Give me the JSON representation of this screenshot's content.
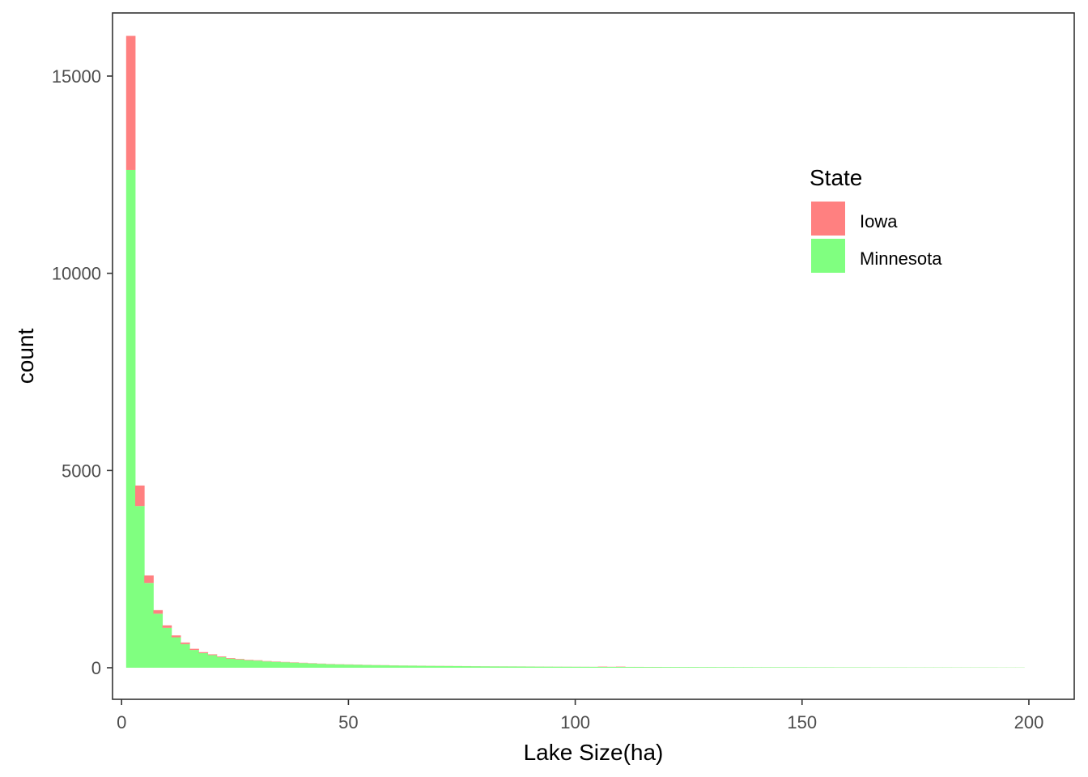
{
  "chart_data": {
    "type": "bar",
    "subtype": "stacked-histogram",
    "xlabel": "Lake Size(ha)",
    "ylabel": "count",
    "xlim": [
      -2,
      210
    ],
    "ylim": [
      -800,
      16600
    ],
    "x_ticks": [
      0,
      50,
      100,
      150,
      200
    ],
    "y_ticks": [
      0,
      5000,
      10000,
      15000
    ],
    "x_tick_labels": [
      "0",
      "50",
      "100",
      "150",
      "200"
    ],
    "y_tick_labels": [
      "0",
      "5000",
      "10000",
      "15000"
    ],
    "grid": false,
    "legend": {
      "title": "State",
      "position": "top-right"
    },
    "bins": {
      "start": 1,
      "width": 2,
      "end": 199
    },
    "series": [
      {
        "name": "Minnesota",
        "color": "#80ff80",
        "values": [
          12620,
          4100,
          2150,
          1370,
          1010,
          770,
          600,
          450,
          370,
          320,
          270,
          230,
          210,
          190,
          180,
          160,
          150,
          140,
          130,
          120,
          110,
          100,
          90,
          85,
          80,
          75,
          70,
          66,
          62,
          58,
          55,
          52,
          50,
          48,
          46,
          44,
          42,
          40,
          38,
          36,
          34,
          33,
          32,
          31,
          30,
          29,
          28,
          27,
          26,
          25,
          24,
          23,
          22,
          21,
          21,
          20,
          20,
          19,
          19,
          18,
          18,
          17,
          17,
          16,
          16,
          15,
          15,
          14,
          14,
          13,
          13,
          13,
          12,
          12,
          12,
          11,
          11,
          11,
          10,
          10,
          10,
          10,
          9,
          9,
          9,
          9,
          8,
          8,
          8,
          8,
          8,
          7,
          7,
          7,
          7,
          7,
          6,
          6,
          6
        ]
      },
      {
        "name": "Iowa",
        "color": "#ff8080",
        "values": [
          3400,
          520,
          190,
          90,
          65,
          50,
          40,
          30,
          25,
          20,
          18,
          16,
          14,
          12,
          11,
          10,
          9,
          8,
          8,
          7,
          7,
          6,
          6,
          5,
          5,
          5,
          4,
          4,
          4,
          4,
          3,
          3,
          3,
          3,
          3,
          3,
          2,
          2,
          2,
          2,
          2,
          2,
          2,
          2,
          2,
          2,
          2,
          2,
          2,
          2,
          2,
          2,
          8,
          4,
          8,
          2,
          2,
          2,
          2,
          1,
          1,
          1,
          1,
          1,
          1,
          1,
          1,
          1,
          1,
          1,
          1,
          1,
          1,
          1,
          1,
          1,
          1,
          1,
          1,
          1,
          1,
          1,
          1,
          1,
          1,
          1,
          1,
          1,
          1,
          1,
          1,
          1,
          1,
          1,
          1,
          1,
          1,
          1,
          1
        ]
      }
    ]
  }
}
